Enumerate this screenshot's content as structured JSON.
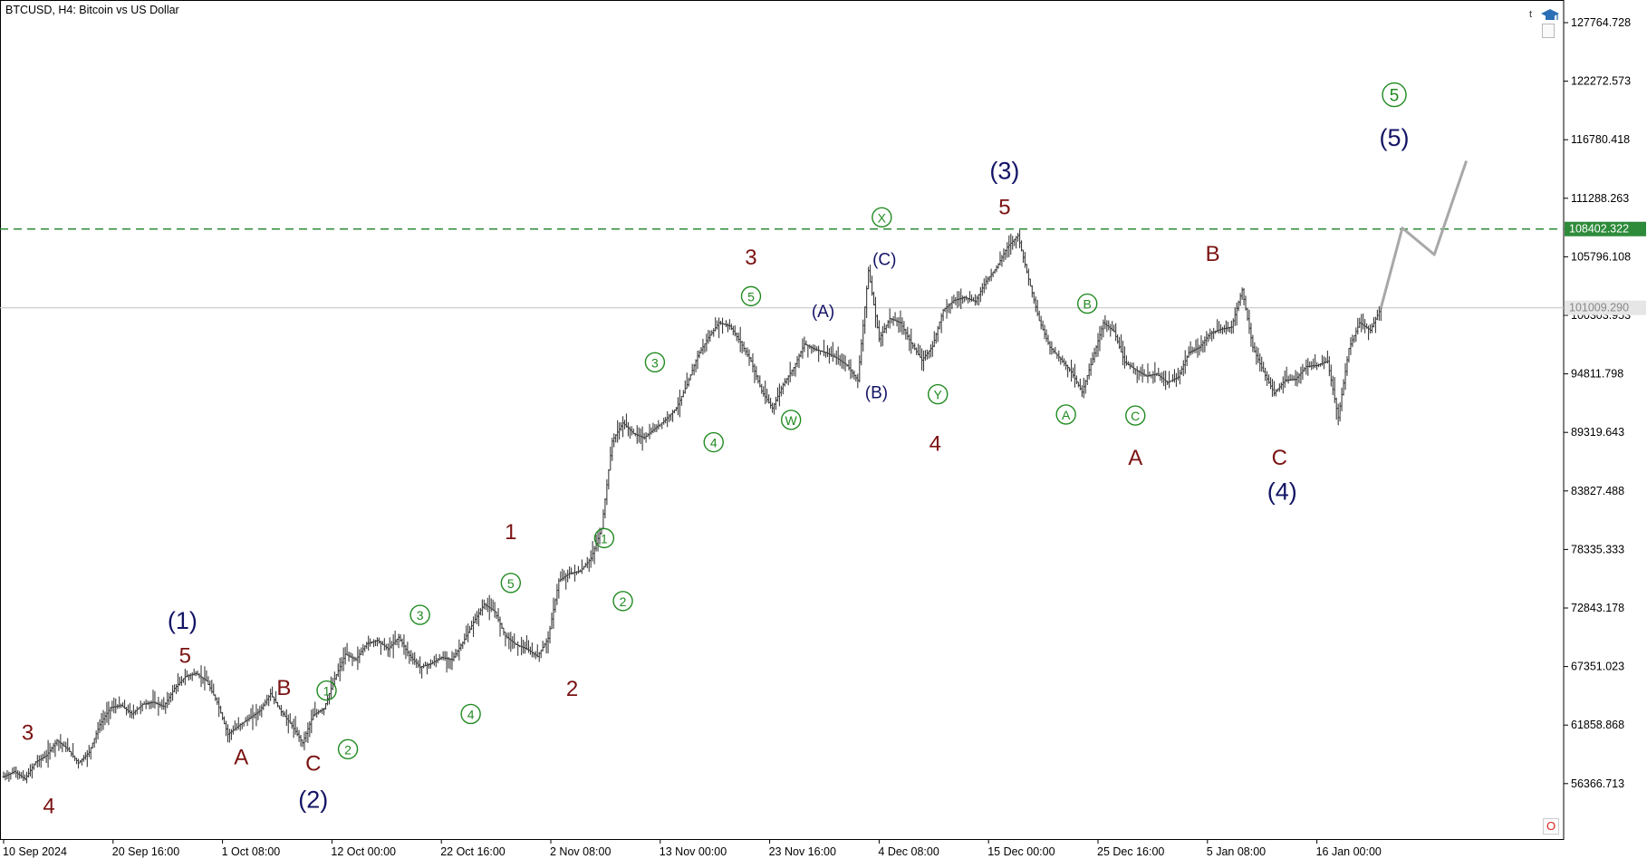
{
  "symbol_line": "BTCUSD, H4:  Bitcoin vs US Dollar",
  "corner_letter": "t",
  "icons": {
    "top_right": "graduation-cap-icon",
    "top_right_box": "window-icon",
    "bottom_right": "trade-circle-icon"
  },
  "trade_glyph": "O",
  "colors": {
    "candle": "#3c3c3c",
    "green_level": "#2e8b3a",
    "current_level": "#c8c8c8",
    "projection": "#a8a8a8",
    "maroon": "#7b1212",
    "navy": "#141466",
    "green": "#1f8a1f"
  },
  "chart_data": {
    "type": "candlestick",
    "y_axis": {
      "min": 52000,
      "max": 130000,
      "ticks": [
        "127764.728",
        "122272.573",
        "116780.418",
        "111288.263",
        "105796.108",
        "100303.953",
        "94811.798",
        "89319.643",
        "83827.488",
        "78335.333",
        "72843.178",
        "67351.023",
        "61858.868",
        "56366.713"
      ]
    },
    "x_axis": {
      "ticks": [
        "10 Sep 2024",
        "20 Sep 16:00",
        "1 Oct 08:00",
        "12 Oct 00:00",
        "22 Oct 16:00",
        "2 Nov 08:00",
        "13 Nov 00:00",
        "23 Nov 16:00",
        "4 Dec 08:00",
        "15 Dec 00:00",
        "25 Dec 16:00",
        "5 Jan 08:00",
        "16 Jan 00:00"
      ]
    },
    "price_path": [
      [
        0,
        57000
      ],
      [
        2,
        57500
      ],
      [
        4,
        56800
      ],
      [
        6,
        58400
      ],
      [
        8,
        59000
      ],
      [
        10,
        60400
      ],
      [
        12,
        59600
      ],
      [
        14,
        58300
      ],
      [
        16,
        59300
      ],
      [
        18,
        61900
      ],
      [
        20,
        63500
      ],
      [
        22,
        63700
      ],
      [
        24,
        62900
      ],
      [
        26,
        63800
      ],
      [
        28,
        64000
      ],
      [
        30,
        63600
      ],
      [
        32,
        65300
      ],
      [
        34,
        66400
      ],
      [
        36,
        66700
      ],
      [
        38,
        66000
      ],
      [
        40,
        64000
      ],
      [
        42,
        61000
      ],
      [
        44,
        61800
      ],
      [
        46,
        62500
      ],
      [
        48,
        63200
      ],
      [
        50,
        64800
      ],
      [
        52,
        63100
      ],
      [
        54,
        61800
      ],
      [
        56,
        60200
      ],
      [
        58,
        62800
      ],
      [
        60,
        63400
      ],
      [
        62,
        66200
      ],
      [
        64,
        68500
      ],
      [
        66,
        68000
      ],
      [
        68,
        69500
      ],
      [
        70,
        69800
      ],
      [
        72,
        69000
      ],
      [
        74,
        70100
      ],
      [
        76,
        68400
      ],
      [
        78,
        67300
      ],
      [
        80,
        67600
      ],
      [
        82,
        68200
      ],
      [
        84,
        68000
      ],
      [
        86,
        69600
      ],
      [
        88,
        71500
      ],
      [
        90,
        73200
      ],
      [
        92,
        72500
      ],
      [
        94,
        70200
      ],
      [
        96,
        69400
      ],
      [
        98,
        69000
      ],
      [
        100,
        68300
      ],
      [
        102,
        70000
      ],
      [
        104,
        75400
      ],
      [
        106,
        76100
      ],
      [
        108,
        76300
      ],
      [
        110,
        77500
      ],
      [
        112,
        80300
      ],
      [
        114,
        88500
      ],
      [
        116,
        90200
      ],
      [
        118,
        89200
      ],
      [
        120,
        88800
      ],
      [
        122,
        89700
      ],
      [
        124,
        90500
      ],
      [
        126,
        91600
      ],
      [
        128,
        93800
      ],
      [
        130,
        96500
      ],
      [
        132,
        98200
      ],
      [
        134,
        99600
      ],
      [
        136,
        99300
      ],
      [
        138,
        97800
      ],
      [
        140,
        96000
      ],
      [
        142,
        93200
      ],
      [
        144,
        91600
      ],
      [
        146,
        93800
      ],
      [
        148,
        95400
      ],
      [
        150,
        97600
      ],
      [
        152,
        97100
      ],
      [
        154,
        96800
      ],
      [
        156,
        96300
      ],
      [
        158,
        95600
      ],
      [
        160,
        94200
      ],
      [
        162,
        104500
      ],
      [
        164,
        98100
      ],
      [
        166,
        100000
      ],
      [
        168,
        99600
      ],
      [
        170,
        97700
      ],
      [
        172,
        96100
      ],
      [
        174,
        97400
      ],
      [
        176,
        100800
      ],
      [
        178,
        101700
      ],
      [
        180,
        102000
      ],
      [
        182,
        101600
      ],
      [
        184,
        103500
      ],
      [
        186,
        104800
      ],
      [
        188,
        106700
      ],
      [
        190,
        107800
      ],
      [
        192,
        103700
      ],
      [
        194,
        99800
      ],
      [
        196,
        97300
      ],
      [
        198,
        96200
      ],
      [
        200,
        95000
      ],
      [
        202,
        93100
      ],
      [
        204,
        96200
      ],
      [
        206,
        99600
      ],
      [
        208,
        98800
      ],
      [
        210,
        95900
      ],
      [
        212,
        95200
      ],
      [
        214,
        94600
      ],
      [
        216,
        94800
      ],
      [
        218,
        94000
      ],
      [
        220,
        94500
      ],
      [
        222,
        96800
      ],
      [
        224,
        97300
      ],
      [
        226,
        98600
      ],
      [
        228,
        99000
      ],
      [
        230,
        99200
      ],
      [
        232,
        102700
      ],
      [
        234,
        97300
      ],
      [
        236,
        95000
      ],
      [
        238,
        93000
      ],
      [
        240,
        94200
      ],
      [
        242,
        94300
      ],
      [
        244,
        95500
      ],
      [
        246,
        95600
      ],
      [
        248,
        96000
      ],
      [
        250,
        90700
      ],
      [
        252,
        97200
      ],
      [
        254,
        99600
      ],
      [
        256,
        98900
      ],
      [
        258,
        101000
      ]
    ],
    "candles_per_tick": 20.5,
    "horizontal_levels": [
      {
        "label": "108402.322",
        "value": 108402.322,
        "style": "dashed"
      },
      {
        "label": "101009.290",
        "value": 101009.29,
        "style": "solid"
      }
    ],
    "projection": [
      [
        258,
        101000
      ],
      [
        262,
        108500
      ],
      [
        268,
        106000
      ],
      [
        274,
        114800
      ]
    ],
    "wave_labels": [
      {
        "text": "3",
        "color": "maroon",
        "size": "m",
        "x": 4.5,
        "y": 61200
      },
      {
        "text": "4",
        "color": "maroon",
        "size": "m",
        "x": 8.5,
        "y": 54300
      },
      {
        "text": "(1)",
        "color": "navy",
        "size": "l",
        "x": 33.5,
        "y": 71700
      },
      {
        "text": "5",
        "color": "maroon",
        "size": "m",
        "x": 34.0,
        "y": 68400
      },
      {
        "text": "A",
        "color": "maroon",
        "size": "m",
        "x": 44.5,
        "y": 58900
      },
      {
        "text": "B",
        "color": "maroon",
        "size": "m",
        "x": 52.5,
        "y": 65400
      },
      {
        "text": "C",
        "color": "maroon",
        "size": "m",
        "x": 58.0,
        "y": 58300
      },
      {
        "text": "(2)",
        "color": "navy",
        "size": "l",
        "x": 58.0,
        "y": 54900
      },
      {
        "text": "1",
        "color": "green",
        "size": "s",
        "circled": true,
        "x": 60.5,
        "y": 65100
      },
      {
        "text": "2",
        "color": "green",
        "size": "s",
        "circled": true,
        "x": 64.5,
        "y": 59600
      },
      {
        "text": "3",
        "color": "green",
        "size": "s",
        "circled": true,
        "x": 78.0,
        "y": 72200
      },
      {
        "text": "4",
        "color": "green",
        "size": "s",
        "circled": true,
        "x": 87.5,
        "y": 62900
      },
      {
        "text": "5",
        "color": "green",
        "size": "s",
        "circled": true,
        "x": 95.0,
        "y": 75200
      },
      {
        "text": "1",
        "color": "maroon",
        "size": "m",
        "x": 95.0,
        "y": 80000
      },
      {
        "text": "2",
        "color": "maroon",
        "size": "m",
        "x": 106.5,
        "y": 65300
      },
      {
        "text": "1",
        "color": "green",
        "size": "s",
        "circled": true,
        "x": 112.5,
        "y": 79400
      },
      {
        "text": "2",
        "color": "green",
        "size": "s",
        "circled": true,
        "x": 116.0,
        "y": 73500
      },
      {
        "text": "3",
        "color": "green",
        "size": "s",
        "circled": true,
        "x": 122.0,
        "y": 95900
      },
      {
        "text": "4",
        "color": "green",
        "size": "s",
        "circled": true,
        "x": 133.0,
        "y": 88400
      },
      {
        "text": "5",
        "color": "green",
        "size": "s",
        "circled": true,
        "x": 140.0,
        "y": 102100
      },
      {
        "text": "3",
        "color": "maroon",
        "size": "m",
        "x": 140.0,
        "y": 105800
      },
      {
        "text": "W",
        "color": "green",
        "size": "s",
        "circled": true,
        "x": 147.5,
        "y": 90500
      },
      {
        "text": "(A)",
        "color": "navy",
        "size": "s",
        "x": 153.5,
        "y": 100700
      },
      {
        "text": "(B)",
        "color": "navy",
        "size": "s",
        "x": 163.5,
        "y": 93100
      },
      {
        "text": "(C)",
        "color": "navy",
        "size": "s",
        "x": 165.0,
        "y": 105600
      },
      {
        "text": "X",
        "color": "green",
        "size": "s",
        "circled": true,
        "x": 164.5,
        "y": 109500
      },
      {
        "text": "Y",
        "color": "green",
        "size": "s",
        "circled": true,
        "x": 175.0,
        "y": 92900
      },
      {
        "text": "4",
        "color": "maroon",
        "size": "m",
        "x": 174.5,
        "y": 88300
      },
      {
        "text": "(3)",
        "color": "navy",
        "size": "l",
        "x": 187.5,
        "y": 113900
      },
      {
        "text": "5",
        "color": "maroon",
        "size": "m",
        "x": 187.5,
        "y": 110500
      },
      {
        "text": "A",
        "color": "green",
        "size": "s",
        "circled": true,
        "x": 199.0,
        "y": 91000
      },
      {
        "text": "B",
        "color": "green",
        "size": "s",
        "circled": true,
        "x": 203.0,
        "y": 101400
      },
      {
        "text": "C",
        "color": "green",
        "size": "s",
        "circled": true,
        "x": 212.0,
        "y": 90900
      },
      {
        "text": "A",
        "color": "maroon",
        "size": "m",
        "x": 212.0,
        "y": 87000
      },
      {
        "text": "B",
        "color": "maroon",
        "size": "m",
        "x": 226.5,
        "y": 106100
      },
      {
        "text": "C",
        "color": "maroon",
        "size": "m",
        "x": 239.0,
        "y": 87000
      },
      {
        "text": "(4)",
        "color": "navy",
        "size": "l",
        "x": 239.5,
        "y": 83800
      },
      {
        "text": "5",
        "color": "green",
        "size": "l",
        "circled": true,
        "x": 260.5,
        "y": 121000
      },
      {
        "text": "(5)",
        "color": "navy",
        "size": "l",
        "x": 260.5,
        "y": 117000
      }
    ]
  }
}
